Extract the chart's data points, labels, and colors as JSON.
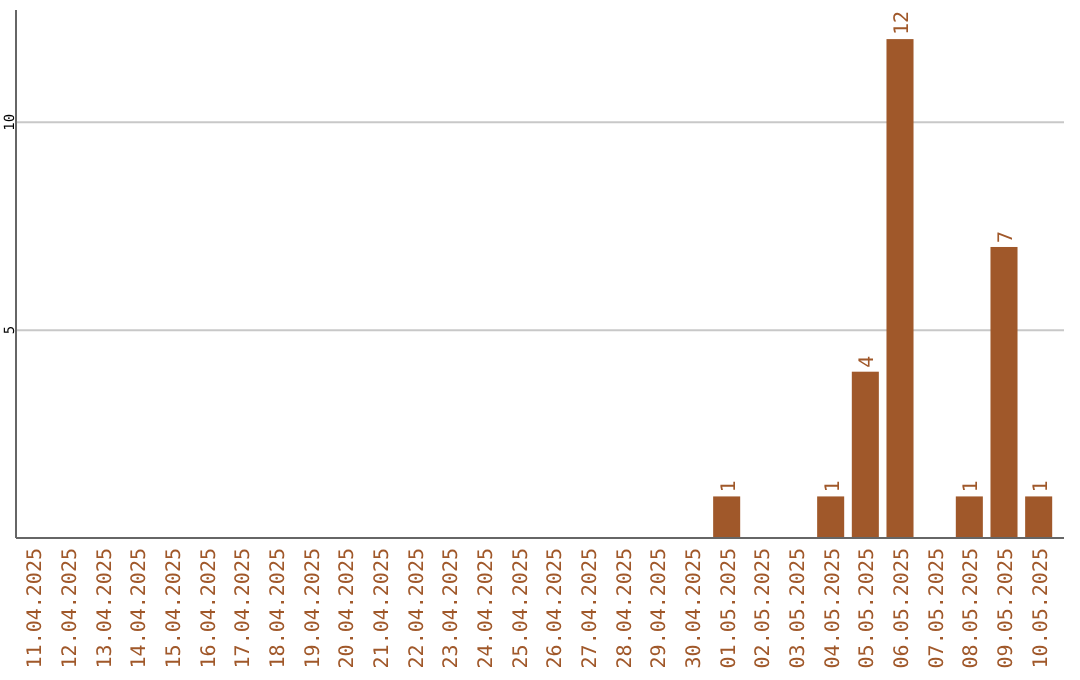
{
  "chart_data": {
    "type": "bar",
    "categories": [
      "11.04.2025",
      "12.04.2025",
      "13.04.2025",
      "14.04.2025",
      "15.04.2025",
      "16.04.2025",
      "17.04.2025",
      "18.04.2025",
      "19.04.2025",
      "20.04.2025",
      "21.04.2025",
      "22.04.2025",
      "23.04.2025",
      "24.04.2025",
      "25.04.2025",
      "26.04.2025",
      "27.04.2025",
      "28.04.2025",
      "29.04.2025",
      "30.04.2025",
      "01.05.2025",
      "02.05.2025",
      "03.05.2025",
      "04.05.2025",
      "05.05.2025",
      "06.05.2025",
      "07.05.2025",
      "08.05.2025",
      "09.05.2025",
      "10.05.2025"
    ],
    "values": [
      0,
      0,
      0,
      0,
      0,
      0,
      0,
      0,
      0,
      0,
      0,
      0,
      0,
      0,
      0,
      0,
      0,
      0,
      0,
      0,
      1,
      0,
      0,
      1,
      4,
      12,
      0,
      1,
      7,
      1
    ],
    "value_labels": [
      null,
      null,
      null,
      null,
      null,
      null,
      null,
      null,
      null,
      null,
      null,
      null,
      null,
      null,
      null,
      null,
      null,
      null,
      null,
      null,
      "1",
      null,
      null,
      "1",
      "4",
      "12",
      null,
      "1",
      "7",
      "1"
    ],
    "color": "#a0582a",
    "ylim": [
      0,
      12.7
    ],
    "yticks": [
      5,
      10
    ],
    "grid": "y"
  }
}
